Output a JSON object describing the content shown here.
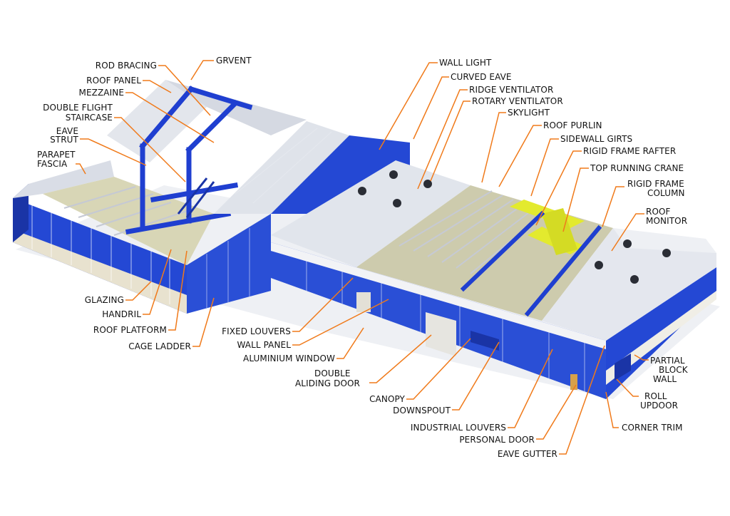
{
  "diagram": {
    "colors": {
      "steel": "#1f3fd0",
      "steel_dark": "#142a9a",
      "cladding_blue": "#2a4fd6",
      "roof_panel": "#e6e9ef",
      "floor": "#c9c7a2",
      "crane": "#e3ea2e",
      "leader": "#f07a1a",
      "text": "#111111"
    },
    "labels": [
      {
        "id": "grvent",
        "text": "GRVENT"
      },
      {
        "id": "rod-bracing",
        "text": "ROD BRACING"
      },
      {
        "id": "roof-panel",
        "text": "ROOF PANEL"
      },
      {
        "id": "mezzaine",
        "text": "MEZZAINE"
      },
      {
        "id": "double-flight",
        "text": "DOUBLE FLIGHT"
      },
      {
        "id": "staircase",
        "text": "STAIRCASE"
      },
      {
        "id": "eave",
        "text": "EAVE"
      },
      {
        "id": "strut",
        "text": "STRUT"
      },
      {
        "id": "parapet",
        "text": "PARAPET"
      },
      {
        "id": "fascia",
        "text": "FASCIA"
      },
      {
        "id": "glazing",
        "text": "GLAZING"
      },
      {
        "id": "handril",
        "text": "HANDRIL"
      },
      {
        "id": "roof-platform",
        "text": "ROOF PLATFORM"
      },
      {
        "id": "cage-ladder",
        "text": "CAGE LADDER"
      },
      {
        "id": "fixed-louvers",
        "text": "FIXED LOUVERS"
      },
      {
        "id": "wall-panel",
        "text": "WALL PANEL"
      },
      {
        "id": "aluminium-window",
        "text": "ALUMINIUM WINDOW"
      },
      {
        "id": "double",
        "text": "DOUBLE"
      },
      {
        "id": "aliding-door",
        "text": "ALIDING DOOR"
      },
      {
        "id": "canopy",
        "text": "CANOPY"
      },
      {
        "id": "downspout",
        "text": "DOWNSPOUT"
      },
      {
        "id": "industrial-louvers",
        "text": "INDUSTRIAL LOUVERS"
      },
      {
        "id": "personal-door",
        "text": "PERSONAL DOOR"
      },
      {
        "id": "eave-gutter",
        "text": "EAVE GUTTER"
      },
      {
        "id": "wall-light",
        "text": "WALL LIGHT"
      },
      {
        "id": "curved-eave",
        "text": "CURVED EAVE"
      },
      {
        "id": "ridge-ventilator",
        "text": "RIDGE VENTILATOR"
      },
      {
        "id": "rotary-ventilator",
        "text": "ROTARY VENTILATOR"
      },
      {
        "id": "skylight",
        "text": "SKYLIGHT"
      },
      {
        "id": "roof-purlin",
        "text": "ROOF PURLIN"
      },
      {
        "id": "sidewall-girts",
        "text": "SIDEWALL GIRTS"
      },
      {
        "id": "rigid-frame-rafter",
        "text": "RIGID FRAME RAFTER"
      },
      {
        "id": "top-running-crane",
        "text": "TOP RUNNING CRANE"
      },
      {
        "id": "rigid-frame",
        "text": "RIGID FRAME"
      },
      {
        "id": "column",
        "text": "COLUMN"
      },
      {
        "id": "roof",
        "text": "ROOF"
      },
      {
        "id": "monitor",
        "text": "MONITOR"
      },
      {
        "id": "partial",
        "text": "PARTIAL"
      },
      {
        "id": "block",
        "text": "BLOCK"
      },
      {
        "id": "wall",
        "text": "WALL"
      },
      {
        "id": "roll",
        "text": "ROLL"
      },
      {
        "id": "updoor",
        "text": "UPDOOR"
      },
      {
        "id": "corner-trim",
        "text": "CORNER TRIM"
      }
    ]
  }
}
